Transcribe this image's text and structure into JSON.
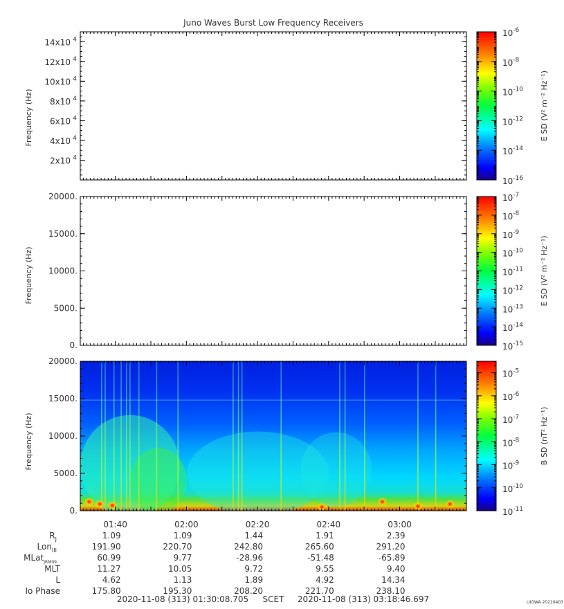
{
  "title": "Juno Waves Burst Low Frequency Receivers",
  "credit": "UIOWA 20210403",
  "chart_data": [
    {
      "type": "heatmap",
      "ylabel": "Frequency (Hz)",
      "ylim": [
        0,
        150000
      ],
      "yticks": [
        {
          "v": 20000,
          "b": "2x10",
          "e": "4"
        },
        {
          "v": 40000,
          "b": "4x10",
          "e": "4"
        },
        {
          "v": 60000,
          "b": "6x10",
          "e": "4"
        },
        {
          "v": 80000,
          "b": "8x10",
          "e": "4"
        },
        {
          "v": 100000,
          "b": "10x10",
          "e": "4"
        },
        {
          "v": 120000,
          "b": "12x10",
          "e": "4"
        },
        {
          "v": 140000,
          "b": "14x10",
          "e": "4"
        }
      ],
      "data_present": false,
      "colorbar": {
        "label": "E SD (V² m⁻² Hz⁻¹)",
        "log_range": [
          -16,
          -6
        ],
        "ticks": [
          -16,
          -14,
          -12,
          -10,
          -8,
          -6
        ]
      }
    },
    {
      "type": "heatmap",
      "ylabel": "Frequency (Hz)",
      "ylim": [
        0,
        20000
      ],
      "yticks": [
        {
          "v": 0,
          "t": "0."
        },
        {
          "v": 5000,
          "t": "5000."
        },
        {
          "v": 10000,
          "t": "10000."
        },
        {
          "v": 15000,
          "t": "15000."
        },
        {
          "v": 20000,
          "t": "20000."
        }
      ],
      "data_present": false,
      "colorbar": {
        "label": "E SD (V² m⁻² Hz⁻¹)",
        "log_range": [
          -15,
          -7
        ],
        "ticks": [
          -15,
          -14,
          -13,
          -12,
          -11,
          -10,
          -9,
          -8,
          -7
        ]
      }
    },
    {
      "type": "heatmap",
      "ylabel": "Frequency (Hz)",
      "ylim": [
        0,
        20000
      ],
      "yticks": [
        {
          "v": 0,
          "t": "0."
        },
        {
          "v": 5000,
          "t": "5000."
        },
        {
          "v": 10000,
          "t": "10000."
        },
        {
          "v": 15000,
          "t": "15000."
        },
        {
          "v": 20000,
          "t": "20000."
        }
      ],
      "data_present": true,
      "description_values": "B spectral density, elevated (green-red) below ~1 kHz, broadband enhancements ~01:35-01:50 and near 03:05-03:15",
      "colorbar": {
        "label": "B SD (nT² Hz⁻¹)",
        "log_range": [
          -11,
          -4.5
        ],
        "ticks": [
          -11,
          -10,
          -9,
          -8,
          -7,
          -6,
          -5
        ]
      },
      "bursts_min": [
        6,
        7,
        9.5,
        11.5,
        13,
        14,
        16.5,
        21.5,
        27.5,
        43,
        44.5,
        45.5,
        56.5,
        73,
        74.5,
        80,
        95,
        100
      ],
      "hotspots_min": [
        [
          2.5,
          1200
        ],
        [
          5.5,
          900
        ],
        [
          9,
          700
        ],
        [
          68,
          500
        ],
        [
          85,
          1200
        ],
        [
          95,
          600
        ],
        [
          104,
          900
        ]
      ]
    }
  ],
  "x_axis": {
    "range_min": [
      0,
      108.64
    ],
    "ticks": [
      {
        "m": 9.86,
        "t": "01:40"
      },
      {
        "m": 29.86,
        "t": "02:00"
      },
      {
        "m": 49.86,
        "t": "02:20"
      },
      {
        "m": 69.86,
        "t": "02:40"
      },
      {
        "m": 89.86,
        "t": "03:00"
      }
    ]
  },
  "ephemeris": {
    "rows": [
      {
        "label": "R",
        "sub": "J",
        "values": [
          "1.09",
          "1.09",
          "1.44",
          "1.91",
          "2.39"
        ]
      },
      {
        "label": "Lon",
        "sub": "III",
        "values": [
          "191.90",
          "220.70",
          "242.80",
          "265.60",
          "291.20"
        ]
      },
      {
        "label": "MLat",
        "sub": "JRM09",
        "values": [
          "60.99",
          "9.77",
          "-28.96",
          "-51.48",
          "-65.89"
        ]
      },
      {
        "label": "MLT",
        "sub": "",
        "values": [
          "11.27",
          "10.05",
          "9.72",
          "9.55",
          "9.40"
        ]
      },
      {
        "label": "L",
        "sub": "",
        "values": [
          "4.62",
          "1.13",
          "1.89",
          "4.92",
          "14.34"
        ]
      },
      {
        "label": "Io Phase",
        "sub": "",
        "values": [
          "175.80",
          "195.30",
          "208.20",
          "221.70",
          "238.10"
        ]
      }
    ]
  },
  "time_range": {
    "start": "2020-11-08 (313) 01:30:08.705",
    "label": "SCET",
    "end": "2020-11-08 (313) 03:18:46.697"
  }
}
